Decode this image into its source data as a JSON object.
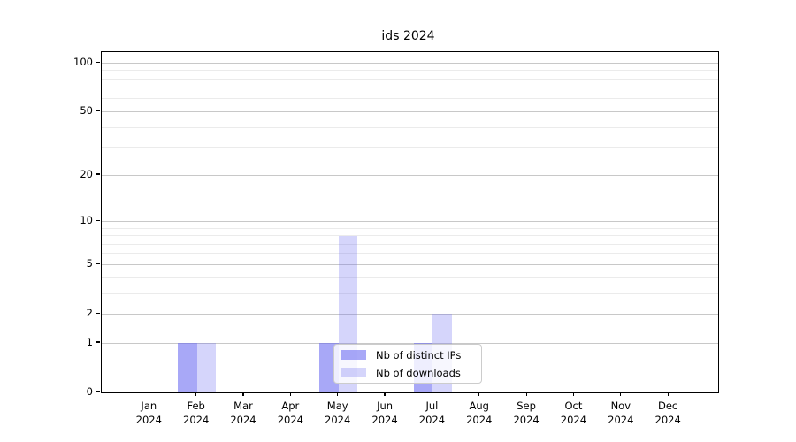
{
  "chart_data": {
    "type": "bar",
    "title": "ids 2024",
    "categories": [
      "Jan",
      "Feb",
      "Mar",
      "Apr",
      "May",
      "Jun",
      "Jul",
      "Aug",
      "Sep",
      "Oct",
      "Nov",
      "Dec"
    ],
    "x_tick_second_line": "2024",
    "xlabel": "",
    "ylabel": "",
    "series": [
      {
        "name": "Nb of distinct IPs",
        "color": "rgba(100,100,240,0.56)",
        "values": [
          0,
          1,
          0,
          0,
          1,
          0,
          1,
          0,
          0,
          0,
          0,
          0
        ]
      },
      {
        "name": "Nb of downloads",
        "color": "rgba(100,100,240,0.27)",
        "values": [
          0,
          1,
          0,
          0,
          8,
          0,
          2,
          0,
          0,
          0,
          0,
          0
        ]
      }
    ],
    "y_axis": {
      "scale": "log1p",
      "major_ticks": [
        0,
        1,
        2,
        5,
        10,
        20,
        50,
        100
      ],
      "minor_ticks": [
        3,
        4,
        6,
        7,
        8,
        9,
        30,
        40,
        60,
        70,
        80,
        90
      ],
      "range": [
        0,
        117
      ]
    },
    "legend": {
      "position": "lower center",
      "items": [
        "Nb of distinct IPs",
        "Nb of downloads"
      ]
    },
    "grid": "both",
    "style_colors": {
      "major_grid": "#c8c8c8",
      "minor_grid": "#ebebeb",
      "spine": "#000000",
      "text": "#000000"
    }
  }
}
